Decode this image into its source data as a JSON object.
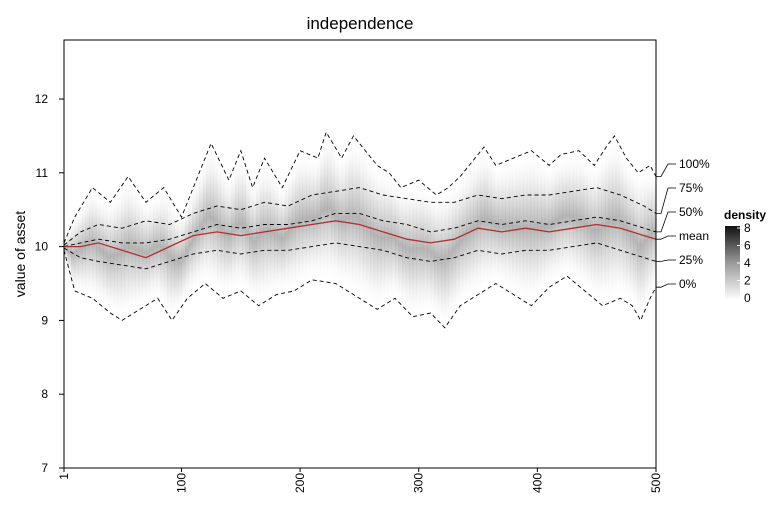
{
  "chart_data": {
    "type": "line",
    "title": "independence",
    "xlabel": "",
    "ylabel": "value of asset",
    "xlim": [
      1,
      500
    ],
    "ylim": [
      7,
      12.8
    ],
    "x_ticks": [
      "1",
      "100",
      "200",
      "300",
      "400",
      "500"
    ],
    "y_ticks": [
      "7",
      "8",
      "9",
      "10",
      "11",
      "12"
    ],
    "grid": false,
    "background": "density of simulated paths (grey shading)",
    "series": [
      {
        "name": "100%",
        "style": "dashed",
        "color": "#000000",
        "points": [
          [
            1,
            10.05
          ],
          [
            10,
            10.4
          ],
          [
            25,
            10.8
          ],
          [
            40,
            10.6
          ],
          [
            55,
            10.95
          ],
          [
            70,
            10.6
          ],
          [
            85,
            10.8
          ],
          [
            100,
            10.4
          ],
          [
            115,
            11.0
          ],
          [
            125,
            11.4
          ],
          [
            140,
            10.9
          ],
          [
            150,
            11.3
          ],
          [
            160,
            10.8
          ],
          [
            170,
            11.2
          ],
          [
            185,
            10.8
          ],
          [
            200,
            11.3
          ],
          [
            215,
            11.2
          ],
          [
            222,
            11.55
          ],
          [
            235,
            11.2
          ],
          [
            245,
            11.5
          ],
          [
            255,
            11.3
          ],
          [
            265,
            11.1
          ],
          [
            275,
            11.0
          ],
          [
            285,
            10.8
          ],
          [
            300,
            10.9
          ],
          [
            315,
            10.7
          ],
          [
            325,
            10.8
          ],
          [
            335,
            10.95
          ],
          [
            345,
            11.15
          ],
          [
            355,
            11.35
          ],
          [
            365,
            11.1
          ],
          [
            380,
            11.2
          ],
          [
            395,
            11.3
          ],
          [
            410,
            11.1
          ],
          [
            420,
            11.25
          ],
          [
            435,
            11.3
          ],
          [
            448,
            11.1
          ],
          [
            458,
            11.35
          ],
          [
            465,
            11.5
          ],
          [
            475,
            11.2
          ],
          [
            485,
            11.0
          ],
          [
            495,
            11.1
          ],
          [
            500,
            10.95
          ]
        ]
      },
      {
        "name": "75%",
        "style": "dashed",
        "color": "#000000",
        "points": [
          [
            1,
            10.02
          ],
          [
            15,
            10.2
          ],
          [
            30,
            10.3
          ],
          [
            50,
            10.25
          ],
          [
            70,
            10.35
          ],
          [
            90,
            10.3
          ],
          [
            110,
            10.45
          ],
          [
            130,
            10.55
          ],
          [
            150,
            10.5
          ],
          [
            170,
            10.6
          ],
          [
            190,
            10.55
          ],
          [
            210,
            10.7
          ],
          [
            230,
            10.75
          ],
          [
            250,
            10.8
          ],
          [
            270,
            10.7
          ],
          [
            290,
            10.65
          ],
          [
            310,
            10.6
          ],
          [
            330,
            10.6
          ],
          [
            350,
            10.7
          ],
          [
            370,
            10.65
          ],
          [
            390,
            10.7
          ],
          [
            410,
            10.7
          ],
          [
            430,
            10.75
          ],
          [
            450,
            10.8
          ],
          [
            470,
            10.7
          ],
          [
            490,
            10.55
          ],
          [
            500,
            10.45
          ]
        ]
      },
      {
        "name": "50%",
        "style": "dashed",
        "color": "#000000",
        "points": [
          [
            1,
            10.0
          ],
          [
            15,
            10.05
          ],
          [
            30,
            10.1
          ],
          [
            50,
            10.05
          ],
          [
            70,
            10.05
          ],
          [
            90,
            10.1
          ],
          [
            110,
            10.2
          ],
          [
            130,
            10.3
          ],
          [
            150,
            10.25
          ],
          [
            170,
            10.3
          ],
          [
            190,
            10.3
          ],
          [
            210,
            10.35
          ],
          [
            230,
            10.45
          ],
          [
            250,
            10.45
          ],
          [
            270,
            10.35
          ],
          [
            290,
            10.3
          ],
          [
            310,
            10.2
          ],
          [
            330,
            10.25
          ],
          [
            350,
            10.35
          ],
          [
            370,
            10.3
          ],
          [
            390,
            10.35
          ],
          [
            410,
            10.3
          ],
          [
            430,
            10.35
          ],
          [
            450,
            10.4
          ],
          [
            470,
            10.35
          ],
          [
            490,
            10.25
          ],
          [
            500,
            10.2
          ]
        ]
      },
      {
        "name": "mean",
        "style": "solid",
        "color": "#b03030",
        "points": [
          [
            1,
            10.0
          ],
          [
            15,
            10.0
          ],
          [
            30,
            10.05
          ],
          [
            50,
            9.95
          ],
          [
            70,
            9.85
          ],
          [
            90,
            10.0
          ],
          [
            110,
            10.15
          ],
          [
            130,
            10.2
          ],
          [
            150,
            10.15
          ],
          [
            170,
            10.2
          ],
          [
            190,
            10.25
          ],
          [
            210,
            10.3
          ],
          [
            230,
            10.35
          ],
          [
            250,
            10.3
          ],
          [
            270,
            10.2
          ],
          [
            290,
            10.1
          ],
          [
            310,
            10.05
          ],
          [
            330,
            10.1
          ],
          [
            350,
            10.25
          ],
          [
            370,
            10.2
          ],
          [
            390,
            10.25
          ],
          [
            410,
            10.2
          ],
          [
            430,
            10.25
          ],
          [
            450,
            10.3
          ],
          [
            470,
            10.25
          ],
          [
            490,
            10.15
          ],
          [
            500,
            10.1
          ]
        ]
      },
      {
        "name": "25%",
        "style": "dashed",
        "color": "#000000",
        "points": [
          [
            1,
            9.98
          ],
          [
            15,
            9.85
          ],
          [
            30,
            9.8
          ],
          [
            50,
            9.75
          ],
          [
            70,
            9.7
          ],
          [
            90,
            9.8
          ],
          [
            110,
            9.9
          ],
          [
            130,
            9.95
          ],
          [
            150,
            9.9
          ],
          [
            170,
            9.95
          ],
          [
            190,
            9.95
          ],
          [
            210,
            10.0
          ],
          [
            230,
            10.05
          ],
          [
            250,
            10.0
          ],
          [
            270,
            9.95
          ],
          [
            290,
            9.85
          ],
          [
            310,
            9.8
          ],
          [
            330,
            9.85
          ],
          [
            350,
            9.95
          ],
          [
            370,
            9.9
          ],
          [
            390,
            9.95
          ],
          [
            410,
            9.95
          ],
          [
            430,
            10.0
          ],
          [
            450,
            10.05
          ],
          [
            470,
            9.95
          ],
          [
            490,
            9.85
          ],
          [
            500,
            9.8
          ]
        ]
      },
      {
        "name": "0%",
        "style": "dashed",
        "color": "#000000",
        "points": [
          [
            1,
            9.95
          ],
          [
            10,
            9.4
          ],
          [
            25,
            9.3
          ],
          [
            40,
            9.1
          ],
          [
            50,
            9.0
          ],
          [
            65,
            9.15
          ],
          [
            80,
            9.3
          ],
          [
            92,
            9.0
          ],
          [
            105,
            9.3
          ],
          [
            120,
            9.5
          ],
          [
            135,
            9.3
          ],
          [
            150,
            9.4
          ],
          [
            165,
            9.2
          ],
          [
            180,
            9.35
          ],
          [
            195,
            9.4
          ],
          [
            210,
            9.55
          ],
          [
            230,
            9.5
          ],
          [
            250,
            9.3
          ],
          [
            265,
            9.15
          ],
          [
            280,
            9.3
          ],
          [
            295,
            9.05
          ],
          [
            310,
            9.1
          ],
          [
            322,
            8.9
          ],
          [
            335,
            9.2
          ],
          [
            350,
            9.35
          ],
          [
            365,
            9.5
          ],
          [
            380,
            9.35
          ],
          [
            395,
            9.2
          ],
          [
            410,
            9.45
          ],
          [
            425,
            9.6
          ],
          [
            440,
            9.4
          ],
          [
            455,
            9.2
          ],
          [
            470,
            9.3
          ],
          [
            480,
            9.2
          ],
          [
            487,
            9.0
          ],
          [
            495,
            9.3
          ],
          [
            500,
            9.45
          ]
        ]
      }
    ],
    "legend": {
      "title": "density",
      "ticks": [
        "0",
        "2",
        "4",
        "6",
        "8"
      ],
      "placement": "right"
    }
  }
}
